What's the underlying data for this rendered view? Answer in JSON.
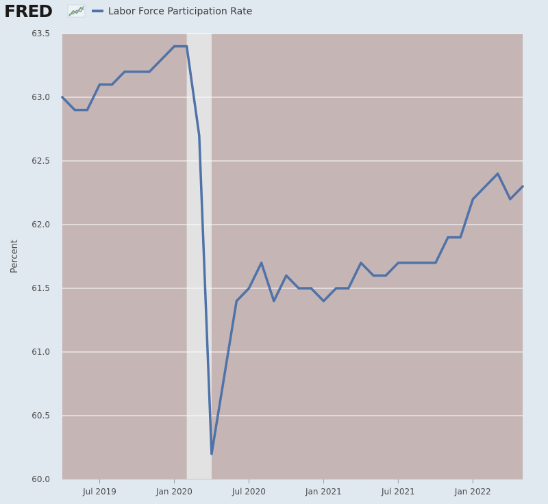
{
  "brand": {
    "logo_text": "FRED",
    "logo_icon": "line-chart-icon"
  },
  "colors": {
    "page_background": "#e1e9f0",
    "plot_background": "#c5b5b5",
    "recession_band": "#e2e2e2",
    "series_line": "#4f72a8",
    "gridline": "#ffffff",
    "text": "#4b4b4b"
  },
  "chart_data": {
    "type": "line",
    "ylabel": "Percent",
    "ylim": [
      60.0,
      63.5
    ],
    "yticks": [
      60.0,
      60.5,
      61.0,
      61.5,
      62.0,
      62.5,
      63.0,
      63.5
    ],
    "ytick_labels": [
      "60.0",
      "60.5",
      "61.0",
      "61.5",
      "62.0",
      "62.5",
      "63.0",
      "63.5"
    ],
    "xlim": [
      "2019-04",
      "2022-05"
    ],
    "xticks": [
      "2019-07",
      "2020-01",
      "2020-07",
      "2021-01",
      "2021-07",
      "2022-01"
    ],
    "xtick_labels": [
      "Jul 2019",
      "Jan 2020",
      "Jul 2020",
      "Jan 2021",
      "Jul 2021",
      "Jan 2022"
    ],
    "grid": true,
    "legend_position": "top-left",
    "recession_shading": [
      {
        "start": "2020-02",
        "end": "2020-04"
      }
    ],
    "series": [
      {
        "name": "Labor Force Participation Rate",
        "x": [
          "2019-04",
          "2019-05",
          "2019-06",
          "2019-07",
          "2019-08",
          "2019-09",
          "2019-10",
          "2019-11",
          "2019-12",
          "2020-01",
          "2020-02",
          "2020-03",
          "2020-04",
          "2020-05",
          "2020-06",
          "2020-07",
          "2020-08",
          "2020-09",
          "2020-10",
          "2020-11",
          "2020-12",
          "2021-01",
          "2021-02",
          "2021-03",
          "2021-04",
          "2021-05",
          "2021-06",
          "2021-07",
          "2021-08",
          "2021-09",
          "2021-10",
          "2021-11",
          "2021-12",
          "2022-01",
          "2022-02",
          "2022-03",
          "2022-04",
          "2022-05"
        ],
        "values": [
          63.0,
          62.9,
          62.9,
          63.1,
          63.1,
          63.2,
          63.2,
          63.2,
          63.3,
          63.4,
          63.4,
          62.7,
          60.2,
          60.8,
          61.4,
          61.5,
          61.7,
          61.4,
          61.6,
          61.5,
          61.5,
          61.4,
          61.5,
          61.5,
          61.7,
          61.6,
          61.6,
          61.7,
          61.7,
          61.7,
          61.7,
          61.9,
          61.9,
          62.2,
          62.3,
          62.4,
          62.2,
          62.3
        ]
      }
    ]
  }
}
